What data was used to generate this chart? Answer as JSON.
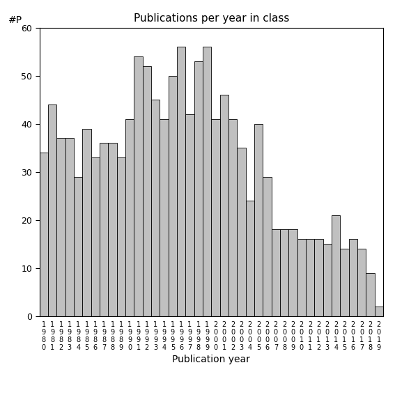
{
  "title": "Publications per year in class",
  "xlabel": "Publication year",
  "ylabel": "#P",
  "bar_color": "#c0c0c0",
  "edge_color": "#000000",
  "years": [
    1980,
    1981,
    1982,
    1983,
    1984,
    1985,
    1986,
    1987,
    1988,
    1989,
    1990,
    1991,
    1992,
    1993,
    1994,
    1995,
    1996,
    1997,
    1998,
    1999,
    2000,
    2001,
    2002,
    2003,
    2004,
    2005,
    2006,
    2007,
    2008,
    2009,
    2010,
    2011,
    2012,
    2013,
    2014,
    2015,
    2016,
    2017,
    2018,
    2019
  ],
  "values": [
    34,
    44,
    37,
    37,
    29,
    39,
    33,
    36,
    36,
    33,
    41,
    54,
    52,
    45,
    41,
    50,
    56,
    42,
    53,
    56,
    41,
    46,
    41,
    35,
    24,
    40,
    29,
    18,
    18,
    18,
    16,
    16,
    16,
    15,
    21,
    14,
    16,
    14,
    9,
    2
  ],
  "ylim": [
    0,
    60
  ],
  "yticks": [
    0,
    10,
    20,
    30,
    40,
    50,
    60
  ],
  "background_color": "#ffffff",
  "title_fontsize": 11,
  "xlabel_fontsize": 10,
  "ylabel_fontsize": 10,
  "tick_fontsize": 9,
  "xtick_fontsize": 7
}
